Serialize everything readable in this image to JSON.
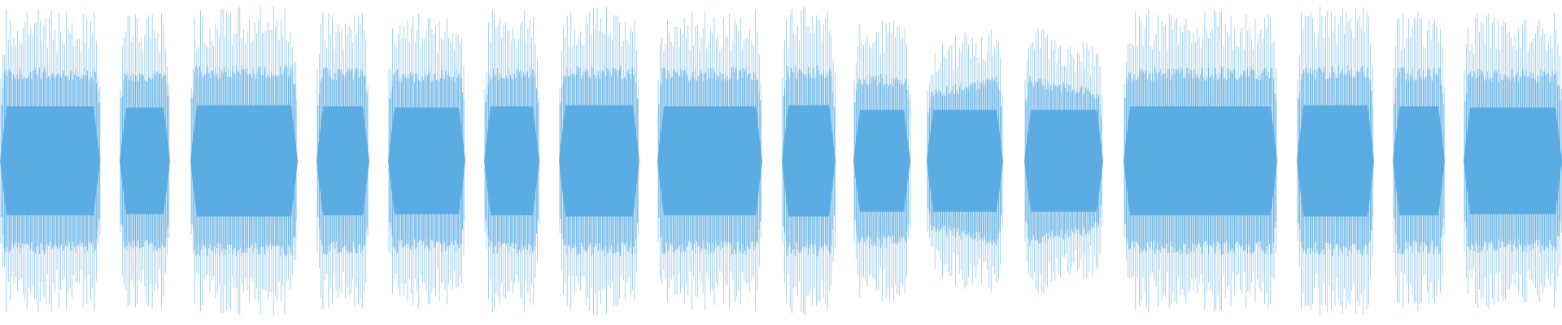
{
  "waveform": {
    "color": "#5aace3",
    "background": "#ffffff",
    "segments": [
      {
        "shape": "flat",
        "peak": 0.95
      },
      {
        "shape": "flat",
        "peak": 0.93
      },
      {
        "shape": "flat",
        "peak": 0.97
      },
      {
        "shape": "flat",
        "peak": 0.95
      },
      {
        "shape": "flat",
        "peak": 0.93
      },
      {
        "shape": "flat",
        "peak": 0.95
      },
      {
        "shape": "flat",
        "peak": 0.97
      },
      {
        "shape": "flat",
        "peak": 0.95
      },
      {
        "shape": "flat",
        "peak": 0.97
      },
      {
        "shape": "flat",
        "peak": 0.89
      },
      {
        "shape": "rising",
        "peak": 0.89
      },
      {
        "shape": "falling",
        "peak": 0.89
      },
      {
        "shape": "flat",
        "peak": 0.95
      },
      {
        "shape": "flat",
        "peak": 0.97
      },
      {
        "shape": "flat",
        "peak": 0.95
      },
      {
        "shape": "flat",
        "peak": 0.93
      }
    ]
  }
}
